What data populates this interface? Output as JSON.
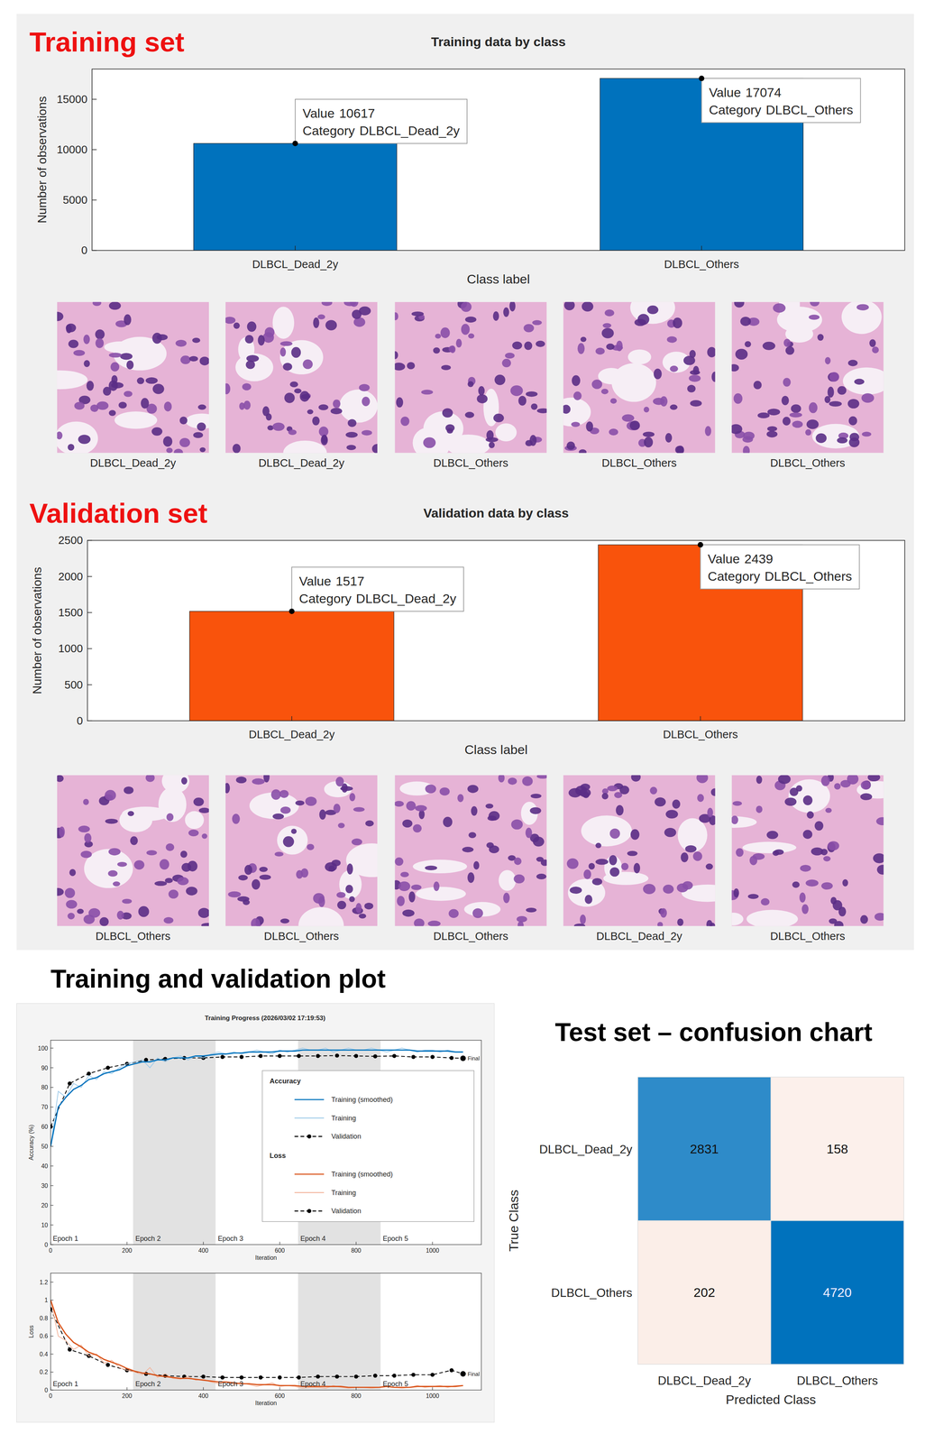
{
  "headings": {
    "training": "Training set",
    "validation": "Validation set",
    "progress": "Training and validation plot"
  },
  "tiles": {
    "training": [
      "DLBCL_Dead_2y",
      "DLBCL_Dead_2y",
      "DLBCL_Others",
      "DLBCL_Others",
      "DLBCL_Others"
    ],
    "validation": [
      "DLBCL_Others",
      "DLBCL_Others",
      "DLBCL_Others",
      "DLBCL_Dead_2y",
      "DLBCL_Others"
    ]
  },
  "chart_data": [
    {
      "type": "bar",
      "title": "Training data by class",
      "x_label": "Class label",
      "y_label": "Number of observations",
      "categories": [
        "DLBCL_Dead_2y",
        "DLBCL_Others"
      ],
      "values": [
        10617,
        17074
      ],
      "color": "#0072bd",
      "ylim": [
        0,
        18000
      ],
      "yticks": [
        0,
        5000,
        10000,
        15000
      ],
      "datatip_labels": {
        "value": "Value",
        "category": "Category"
      }
    },
    {
      "type": "bar",
      "title": "Validation data by class",
      "x_label": "Class label",
      "y_label": "Number of observations",
      "categories": [
        "DLBCL_Dead_2y",
        "DLBCL_Others"
      ],
      "values": [
        1517,
        2439
      ],
      "color": "#f9530c",
      "ylim": [
        0,
        2500
      ],
      "yticks": [
        0,
        500,
        1000,
        1500,
        2000,
        2500
      ],
      "datatip_labels": {
        "value": "Value",
        "category": "Category"
      }
    },
    {
      "type": "line",
      "title": "Training Progress (2026/03/02 17:19:53)",
      "x_label": "Iteration",
      "y_label": "Accuracy (%)",
      "legend": "right",
      "legend_title": "Accuracy",
      "final_label": "Final",
      "xlim": [
        0,
        1128
      ],
      "xticks": [
        0,
        200,
        400,
        600,
        800,
        1000
      ],
      "ylim": [
        0,
        104
      ],
      "yticks": [
        0,
        10,
        20,
        30,
        40,
        50,
        60,
        70,
        80,
        90,
        100
      ],
      "epochs": {
        "labels": [
          "Epoch 1",
          "Epoch 2",
          "Epoch 3",
          "Epoch 4",
          "Epoch 5"
        ],
        "bounds": [
          0,
          216,
          432,
          648,
          864,
          1080
        ]
      },
      "series": [
        {
          "name": "Training (smoothed)",
          "color": "#0072bd",
          "line_style": "solid",
          "x": [
            0,
            20,
            40,
            60,
            80,
            100,
            120,
            140,
            160,
            180,
            200,
            220,
            240,
            260,
            280,
            300,
            320,
            340,
            360,
            380,
            400,
            420,
            440,
            460,
            480,
            500,
            520,
            540,
            560,
            580,
            600,
            620,
            640,
            660,
            680,
            700,
            720,
            740,
            760,
            780,
            800,
            820,
            840,
            860,
            880,
            900,
            920,
            940,
            960,
            980,
            1000,
            1020,
            1040,
            1060,
            1080
          ],
          "values": [
            50,
            70,
            75,
            79,
            81,
            84,
            85,
            87,
            88,
            89,
            91,
            92,
            93,
            93,
            94,
            94,
            95,
            95,
            95,
            96,
            96,
            96.5,
            97,
            97,
            97.5,
            97.5,
            98,
            98,
            98,
            98,
            98.5,
            98.5,
            98.5,
            99,
            99,
            99,
            99,
            99,
            99,
            99,
            99,
            99,
            99,
            99,
            99,
            99,
            99,
            99,
            98.5,
            98.5,
            98.5,
            98.5,
            98.5,
            98,
            98
          ]
        },
        {
          "name": "Training",
          "color": "#9ecae9",
          "line_style": "solid",
          "x": [
            0,
            20,
            40,
            60,
            80,
            100,
            120,
            140,
            160,
            180,
            200,
            220,
            240,
            260,
            280,
            300,
            320,
            340,
            360,
            380,
            400,
            420,
            440,
            460,
            480,
            500,
            520,
            540,
            560,
            580,
            600,
            620,
            640,
            660,
            680,
            700,
            720,
            740,
            760,
            780,
            800,
            820,
            840,
            860,
            880,
            900,
            920,
            940,
            960,
            980,
            1000,
            1020,
            1040,
            1060,
            1080
          ],
          "values": [
            50,
            78,
            75,
            82,
            80,
            86,
            84,
            88,
            87,
            90,
            92,
            93,
            94,
            90,
            95,
            93,
            95,
            96,
            94,
            96,
            95,
            97,
            98,
            97,
            98,
            97,
            98,
            99,
            98,
            97,
            99,
            98,
            99,
            100,
            99,
            99,
            100,
            98,
            99,
            100,
            99,
            99,
            100,
            99,
            98,
            99,
            100,
            99,
            98,
            99,
            99,
            98,
            99,
            98,
            98
          ]
        },
        {
          "name": "Validation",
          "color": "#000000",
          "line_style": "dashed",
          "marker": "circle",
          "x": [
            0,
            50,
            100,
            150,
            200,
            250,
            300,
            350,
            400,
            450,
            500,
            550,
            600,
            650,
            700,
            750,
            800,
            850,
            900,
            950,
            1000,
            1050,
            1080
          ],
          "values": [
            60,
            82,
            87,
            90,
            92,
            94,
            94.5,
            95,
            95,
            95.5,
            95.5,
            96,
            96,
            96,
            96,
            96.2,
            96,
            95.8,
            96,
            95.5,
            95.5,
            95,
            94.8
          ]
        }
      ]
    },
    {
      "type": "line",
      "x_label": "Iteration",
      "y_label": "Loss",
      "legend_title": "Loss",
      "final_label": "Final",
      "xlim": [
        0,
        1128
      ],
      "xticks": [
        0,
        200,
        400,
        600,
        800,
        1000
      ],
      "ylim": [
        0,
        1.3
      ],
      "yticks": [
        0,
        0.2,
        0.4,
        0.6,
        0.8,
        1,
        1.2
      ],
      "epochs": {
        "labels": [
          "Epoch 1",
          "Epoch 2",
          "Epoch 3",
          "Epoch 4",
          "Epoch 5"
        ],
        "bounds": [
          0,
          216,
          432,
          648,
          864,
          1080
        ]
      },
      "series": [
        {
          "name": "Training (smoothed)",
          "color": "#d95319",
          "line_style": "solid",
          "x": [
            0,
            20,
            40,
            60,
            80,
            100,
            120,
            140,
            160,
            180,
            200,
            220,
            240,
            260,
            280,
            300,
            320,
            340,
            360,
            380,
            400,
            420,
            440,
            460,
            480,
            500,
            520,
            540,
            560,
            580,
            600,
            620,
            640,
            660,
            680,
            700,
            720,
            740,
            760,
            780,
            800,
            820,
            840,
            860,
            880,
            900,
            920,
            940,
            960,
            980,
            1000,
            1020,
            1040,
            1060,
            1080
          ],
          "values": [
            1,
            0.75,
            0.62,
            0.53,
            0.48,
            0.42,
            0.39,
            0.34,
            0.31,
            0.28,
            0.24,
            0.21,
            0.19,
            0.18,
            0.16,
            0.15,
            0.14,
            0.13,
            0.13,
            0.12,
            0.11,
            0.1,
            0.09,
            0.09,
            0.08,
            0.07,
            0.07,
            0.06,
            0.06,
            0.06,
            0.05,
            0.05,
            0.05,
            0.04,
            0.04,
            0.04,
            0.04,
            0.04,
            0.04,
            0.03,
            0.03,
            0.03,
            0.03,
            0.03,
            0.04,
            0.03,
            0.03,
            0.03,
            0.04,
            0.04,
            0.04,
            0.04,
            0.04,
            0.04,
            0.05
          ]
        },
        {
          "name": "Training",
          "color": "#f3b49b",
          "line_style": "solid",
          "x": [
            0,
            20,
            40,
            60,
            80,
            100,
            120,
            140,
            160,
            180,
            200,
            220,
            240,
            260,
            280,
            300,
            320,
            340,
            360,
            380,
            400,
            420,
            440,
            460,
            480,
            500,
            520,
            540,
            560,
            580,
            600,
            620,
            640,
            660,
            680,
            700,
            720,
            740,
            760,
            780,
            800,
            820,
            840,
            860,
            880,
            900,
            920,
            940,
            960,
            980,
            1000,
            1020,
            1040,
            1060,
            1080
          ],
          "values": [
            1,
            0.6,
            0.55,
            0.45,
            0.5,
            0.38,
            0.4,
            0.3,
            0.33,
            0.25,
            0.22,
            0.2,
            0.17,
            0.25,
            0.14,
            0.18,
            0.13,
            0.12,
            0.15,
            0.11,
            0.12,
            0.09,
            0.07,
            0.09,
            0.06,
            0.08,
            0.06,
            0.04,
            0.06,
            0.08,
            0.04,
            0.05,
            0.04,
            0.02,
            0.03,
            0.03,
            0.02,
            0.05,
            0.03,
            0.02,
            0.03,
            0.03,
            0.02,
            0.03,
            0.05,
            0.03,
            0.02,
            0.03,
            0.05,
            0.03,
            0.04,
            0.05,
            0.03,
            0.05,
            0.05
          ]
        },
        {
          "name": "Validation",
          "color": "#000000",
          "line_style": "dashed",
          "marker": "circle",
          "x": [
            0,
            50,
            100,
            150,
            200,
            250,
            300,
            350,
            400,
            450,
            500,
            550,
            600,
            650,
            700,
            750,
            800,
            850,
            900,
            950,
            1000,
            1050,
            1080
          ],
          "values": [
            0.9,
            0.45,
            0.38,
            0.28,
            0.22,
            0.18,
            0.16,
            0.15,
            0.15,
            0.14,
            0.14,
            0.14,
            0.14,
            0.14,
            0.15,
            0.15,
            0.15,
            0.16,
            0.16,
            0.17,
            0.17,
            0.22,
            0.18
          ]
        }
      ]
    },
    {
      "type": "heatmap",
      "title": "Test set – confusion chart",
      "x_label": "Predicted Class",
      "y_label": "True Class",
      "x_categories": [
        "DLBCL_Dead_2y",
        "DLBCL_Others"
      ],
      "y_categories": [
        "DLBCL_Dead_2y",
        "DLBCL_Others"
      ],
      "cells": [
        [
          2831,
          158
        ],
        [
          202,
          4720
        ]
      ],
      "data_labels": true
    }
  ]
}
